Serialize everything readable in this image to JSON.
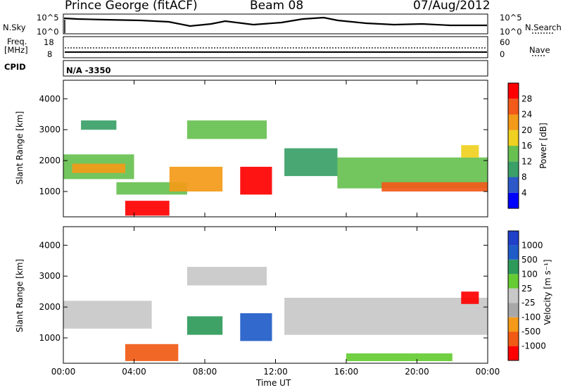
{
  "header": {
    "station": "Prince George (fitACF)",
    "beam": "Beam 08",
    "date": "07/Aug/2012"
  },
  "nsky_panel": {
    "left_label": "N.Sky",
    "left_ticks": [
      "10^5",
      "10^0"
    ],
    "right_ticks": [
      "10^5",
      "10^0"
    ],
    "right_label": "N.Search"
  },
  "freq_panel": {
    "left_label_1": "Freq.",
    "left_label_2": "[MHz]",
    "left_ticks": [
      "18",
      "8"
    ],
    "right_ticks": [
      "60",
      "0"
    ],
    "right_label": "Nave"
  },
  "cpid": {
    "label": "CPID",
    "value": "N/A -3350"
  },
  "x_axis": {
    "label": "Time UT",
    "ticks": [
      "00:00",
      "04:00",
      "08:00",
      "12:00",
      "16:00",
      "20:00",
      "00:00"
    ]
  },
  "colors": {
    "power": [
      "#0000ff",
      "#2c58c8",
      "#3aa067",
      "#67c050",
      "#f0d020",
      "#f39a18",
      "#f25a1a",
      "#ff0000"
    ],
    "velocity": [
      "#ff0000",
      "#f05a14",
      "#f59a18",
      "#a8a8a8",
      "#c8c8c8",
      "#66cc33",
      "#2e9a5a",
      "#1f5cc8",
      "#1f40c8"
    ]
  },
  "chart_data": [
    {
      "type": "heatmap",
      "quantity": "power",
      "ylabel": "Slant Range [km]",
      "xlabel": "Time UT",
      "x_ticks": [
        "00:00",
        "04:00",
        "08:00",
        "12:00",
        "16:00",
        "20:00",
        "00:00"
      ],
      "y_ticks": [
        1000,
        2000,
        3000,
        4000
      ],
      "ylim": [
        180,
        4600
      ],
      "xlim_hours": [
        0,
        24
      ],
      "colorbar": {
        "label": "Power [dB]",
        "tick_labels": [
          "4",
          "8",
          "12",
          "16",
          "20",
          "24",
          "28"
        ],
        "range": [
          0,
          32
        ]
      },
      "regions": [
        {
          "t0": 0.0,
          "t1": 4.0,
          "r0": 1400,
          "r1": 2200,
          "level": 12
        },
        {
          "t0": 0.5,
          "t1": 3.5,
          "r0": 1600,
          "r1": 1900,
          "level": 20
        },
        {
          "t0": 1.0,
          "t1": 3.0,
          "r0": 3000,
          "r1": 3300,
          "level": 8
        },
        {
          "t0": 3.5,
          "t1": 6.0,
          "r0": 220,
          "r1": 700,
          "level": 28
        },
        {
          "t0": 3.0,
          "t1": 7.0,
          "r0": 900,
          "r1": 1300,
          "level": 14
        },
        {
          "t0": 6.0,
          "t1": 9.0,
          "r0": 1000,
          "r1": 1800,
          "level": 20
        },
        {
          "t0": 7.0,
          "t1": 11.5,
          "r0": 2700,
          "r1": 3300,
          "level": 12
        },
        {
          "t0": 10.0,
          "t1": 11.8,
          "r0": 900,
          "r1": 1800,
          "level": 28
        },
        {
          "t0": 12.5,
          "t1": 15.5,
          "r0": 1500,
          "r1": 2400,
          "level": 8
        },
        {
          "t0": 15.5,
          "t1": 24.0,
          "r0": 1100,
          "r1": 2100,
          "level": 14
        },
        {
          "t0": 18.0,
          "t1": 24.0,
          "r0": 1000,
          "r1": 1300,
          "level": 24
        },
        {
          "t0": 22.5,
          "t1": 23.5,
          "r0": 2100,
          "r1": 2500,
          "level": 16
        }
      ]
    },
    {
      "type": "heatmap",
      "quantity": "velocity",
      "ylabel": "Slant Range [km]",
      "xlabel": "Time UT",
      "x_ticks": [
        "00:00",
        "04:00",
        "08:00",
        "12:00",
        "16:00",
        "20:00",
        "00:00"
      ],
      "y_ticks": [
        1000,
        2000,
        3000,
        4000
      ],
      "ylim": [
        180,
        4600
      ],
      "xlim_hours": [
        0,
        24
      ],
      "colorbar": {
        "label": "Velocity [m s⁻¹]",
        "tick_labels": [
          "1000",
          "500",
          "100",
          "25",
          "-25",
          "-100",
          "-500",
          "-1000"
        ]
      },
      "regions": [
        {
          "t0": 0.0,
          "t1": 5.0,
          "r0": 1300,
          "r1": 2200,
          "level": 0
        },
        {
          "t0": 3.5,
          "t1": 6.5,
          "r0": 250,
          "r1": 800,
          "level": -300
        },
        {
          "t0": 7.0,
          "t1": 9.0,
          "r0": 1100,
          "r1": 1700,
          "level": 200
        },
        {
          "t0": 7.0,
          "t1": 11.5,
          "r0": 2700,
          "r1": 3300,
          "level": 0
        },
        {
          "t0": 10.0,
          "t1": 11.8,
          "r0": 900,
          "r1": 1800,
          "level": 800
        },
        {
          "t0": 12.5,
          "t1": 24.0,
          "r0": 1100,
          "r1": 2300,
          "level": 0
        },
        {
          "t0": 22.5,
          "t1": 23.5,
          "r0": 2100,
          "r1": 2500,
          "level": -700
        },
        {
          "t0": 16.0,
          "t1": 22.0,
          "r0": 250,
          "r1": 500,
          "level": 60
        }
      ]
    }
  ]
}
